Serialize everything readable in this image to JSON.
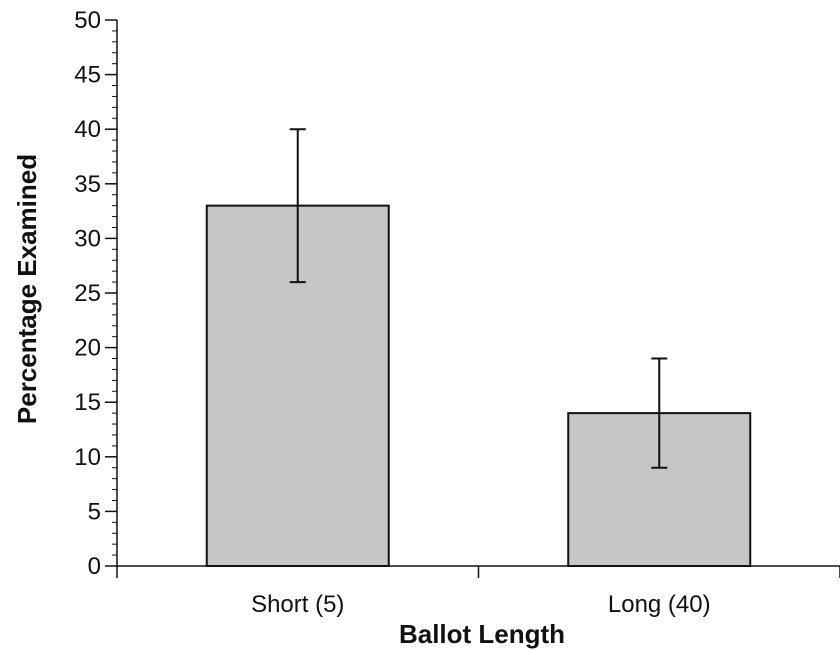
{
  "chart_data": {
    "type": "bar",
    "title": "",
    "xlabel": "Ballot Length",
    "ylabel": "Percentage Examined",
    "categories": [
      "Short (5)",
      "Long (40)"
    ],
    "values": [
      33,
      14
    ],
    "error_bars": [
      {
        "low": 26,
        "high": 40
      },
      {
        "low": 9,
        "high": 19
      }
    ],
    "ylim": [
      0,
      50
    ],
    "y_ticks": [
      "0",
      "5",
      "10",
      "15",
      "20",
      "25",
      "30",
      "35",
      "40",
      "45",
      "50"
    ],
    "y_minor_step": 1,
    "grid": false,
    "legend": "none",
    "bar_color": "#c6c6c6",
    "edge_color": "#111111"
  }
}
